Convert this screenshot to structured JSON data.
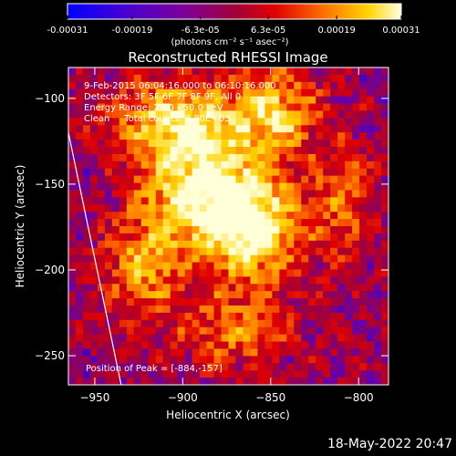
{
  "colorbar": {
    "ticks": [
      "-0.00031",
      "-0.00019",
      "-6.3e-05",
      "6.3e-05",
      "0.00019",
      "0.00031"
    ],
    "tick_values": [
      -0.00031,
      -0.00019,
      -6.3e-05,
      6.3e-05,
      0.00019,
      0.00031
    ],
    "range": [
      -0.00031,
      0.00031
    ],
    "unit_label": "(photons cm⁻² s⁻¹ asec⁻²)"
  },
  "footer": {
    "timestamp": "18-May-2022 20:47"
  },
  "chart_data": {
    "type": "heatmap",
    "title": "Reconstructed RHESSI Image",
    "xlabel": "Heliocentric X (arcsec)",
    "ylabel": "Heliocentric Y (arcsec)",
    "xlim": [
      -965,
      -783
    ],
    "ylim": [
      -267,
      -82
    ],
    "x_ticks": [
      -950,
      -900,
      -850,
      -800
    ],
    "y_ticks": [
      -100,
      -150,
      -200,
      -250
    ],
    "annotations": [
      "9-Feb-2015 06:04:16.000 to 06:10:16.000",
      "Detectors: 3F 5F 6F 7F 8F 9F, All 0",
      "Energy Range: 25.0 - 50.0 keV",
      "Clean     Total counts: 8.80E+03"
    ],
    "peak_label": "Position of Peak = [-884,-157]",
    "peak": [
      -884,
      -157
    ],
    "colormap": [
      "#0000ff",
      "#6600a8",
      "#a1003a",
      "#e00000",
      "#ff7a00",
      "#ffd400",
      "#ffffd8"
    ],
    "emission_blobs": [
      {
        "x": -888,
        "y": -155,
        "sx": 24,
        "sy": 22,
        "a": 1.0
      },
      {
        "x": -858,
        "y": -178,
        "sx": 18,
        "sy": 20,
        "a": 0.85
      },
      {
        "x": -900,
        "y": -112,
        "sx": 28,
        "sy": 16,
        "a": 0.75
      },
      {
        "x": -845,
        "y": -108,
        "sx": 16,
        "sy": 18,
        "a": 0.62
      },
      {
        "x": -870,
        "y": -235,
        "sx": 22,
        "sy": 16,
        "a": 0.48
      },
      {
        "x": -922,
        "y": -200,
        "sx": 16,
        "sy": 20,
        "a": 0.55
      },
      {
        "x": -808,
        "y": -160,
        "sx": 14,
        "sy": 24,
        "a": 0.4
      }
    ],
    "limb_line": {
      "x": [
        -965,
        -935
      ],
      "y": [
        -120,
        -267
      ]
    }
  }
}
